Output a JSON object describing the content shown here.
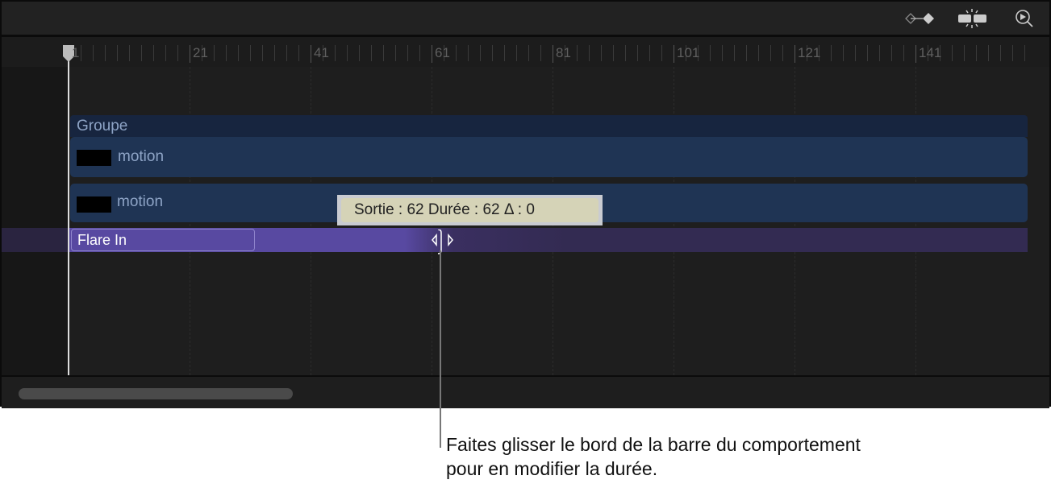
{
  "toolbar": {
    "icons": [
      "keyframe-diamond-icon",
      "snap-icon",
      "zoom-play-icon"
    ]
  },
  "ruler": {
    "labels": [
      "1",
      "21",
      "41",
      "61",
      "81",
      "101",
      "121",
      "141"
    ]
  },
  "tracks": {
    "group": "Groupe",
    "layer1": "motion",
    "layer2": "motion",
    "behavior": "Flare In"
  },
  "tooltip": {
    "text": "Sortie : 62 Durée : 62 Δ : 0"
  },
  "colors": {
    "group": "#17253f",
    "layer": "#1f3454",
    "behavior": "#5849a1"
  },
  "callout": {
    "line1": "Faites glisser le bord de la barre du comportement",
    "line2": "pour en modifier la durée."
  }
}
